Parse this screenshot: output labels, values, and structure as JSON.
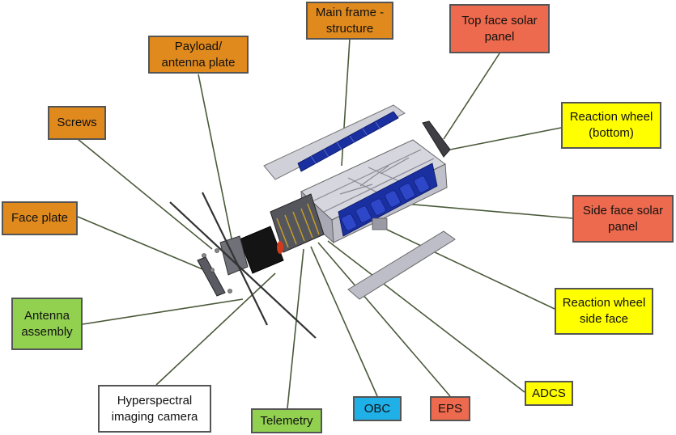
{
  "labels": {
    "main_frame": "Main frame -\nstructure",
    "top_face_solar": "Top face solar\npanel",
    "payload_plate": "Payload/\nantenna plate",
    "screws": "Screws",
    "reaction_wheel_bottom": "Reaction wheel\n(bottom)",
    "face_plate": "Face plate",
    "side_face_solar": "Side face solar\npanel",
    "reaction_wheel_side": "Reaction wheel\nside face",
    "antenna_assembly": "Antenna\nassembly",
    "adcs": "ADCS",
    "hyperspectral_camera": "Hyperspectral\nimaging camera",
    "telemetry": "Telemetry",
    "obc": "OBC",
    "eps": "EPS"
  },
  "colors": {
    "orange": "#E08A1E",
    "red": "#EE6A4E",
    "yellow": "#FFFF00",
    "green": "#92D050",
    "white": "#FFFFFF",
    "blue": "#1FB0E8",
    "leader": "#4A5A3A",
    "solar_cell": "#1A2FA0",
    "frame": "#C8C8D0"
  }
}
